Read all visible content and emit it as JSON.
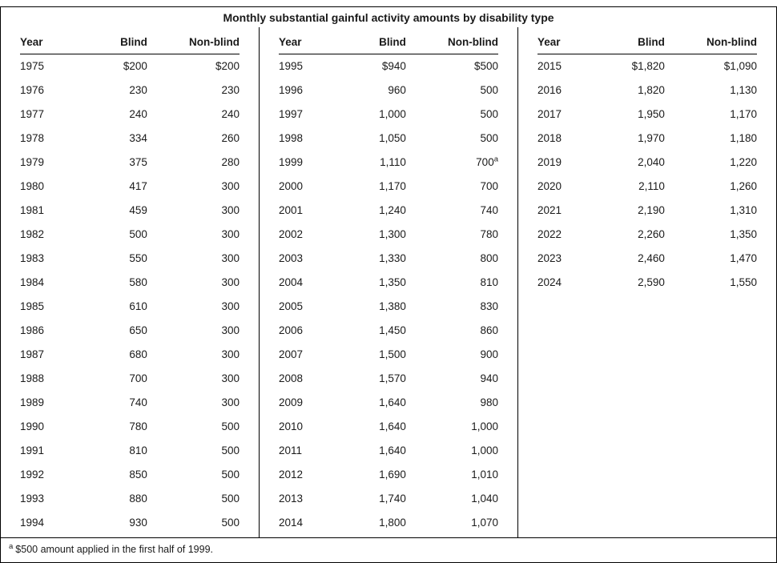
{
  "title": "Monthly substantial gainful activity amounts by disability type",
  "columns": [
    "Year",
    "Blind",
    "Non-blind"
  ],
  "tables": [
    {
      "name": "years-1975-1994",
      "rows": [
        [
          "1975",
          "$200",
          "$200"
        ],
        [
          "1976",
          "230",
          "230"
        ],
        [
          "1977",
          "240",
          "240"
        ],
        [
          "1978",
          "334",
          "260"
        ],
        [
          "1979",
          "375",
          "280"
        ],
        [
          "1980",
          "417",
          "300"
        ],
        [
          "1981",
          "459",
          "300"
        ],
        [
          "1982",
          "500",
          "300"
        ],
        [
          "1983",
          "550",
          "300"
        ],
        [
          "1984",
          "580",
          "300"
        ],
        [
          "1985",
          "610",
          "300"
        ],
        [
          "1986",
          "650",
          "300"
        ],
        [
          "1987",
          "680",
          "300"
        ],
        [
          "1988",
          "700",
          "300"
        ],
        [
          "1989",
          "740",
          "300"
        ],
        [
          "1990",
          "780",
          "500"
        ],
        [
          "1991",
          "810",
          "500"
        ],
        [
          "1992",
          "850",
          "500"
        ],
        [
          "1993",
          "880",
          "500"
        ],
        [
          "1994",
          "930",
          "500"
        ]
      ]
    },
    {
      "name": "years-1995-2014",
      "rows": [
        [
          "1995",
          "$940",
          "$500"
        ],
        [
          "1996",
          "960",
          "500"
        ],
        [
          "1997",
          "1,000",
          "500"
        ],
        [
          "1998",
          "1,050",
          "500"
        ],
        [
          "1999",
          "1,110",
          "700^a"
        ],
        [
          "2000",
          "1,170",
          "700"
        ],
        [
          "2001",
          "1,240",
          "740"
        ],
        [
          "2002",
          "1,300",
          "780"
        ],
        [
          "2003",
          "1,330",
          "800"
        ],
        [
          "2004",
          "1,350",
          "810"
        ],
        [
          "2005",
          "1,380",
          "830"
        ],
        [
          "2006",
          "1,450",
          "860"
        ],
        [
          "2007",
          "1,500",
          "900"
        ],
        [
          "2008",
          "1,570",
          "940"
        ],
        [
          "2009",
          "1,640",
          "980"
        ],
        [
          "2010",
          "1,640",
          "1,000"
        ],
        [
          "2011",
          "1,640",
          "1,000"
        ],
        [
          "2012",
          "1,690",
          "1,010"
        ],
        [
          "2013",
          "1,740",
          "1,040"
        ],
        [
          "2014",
          "1,800",
          "1,070"
        ]
      ]
    },
    {
      "name": "years-2015-2024",
      "rows": [
        [
          "2015",
          "$1,820",
          "$1,090"
        ],
        [
          "2016",
          "1,820",
          "1,130"
        ],
        [
          "2017",
          "1,950",
          "1,170"
        ],
        [
          "2018",
          "1,970",
          "1,180"
        ],
        [
          "2019",
          "2,040",
          "1,220"
        ],
        [
          "2020",
          "2,110",
          "1,260"
        ],
        [
          "2021",
          "2,190",
          "1,310"
        ],
        [
          "2022",
          "2,260",
          "1,350"
        ],
        [
          "2023",
          "2,460",
          "1,470"
        ],
        [
          "2024",
          "2,590",
          "1,550"
        ]
      ]
    }
  ],
  "footnote": {
    "marker": "a",
    "text": "$500 amount applied in the first half of 1999."
  },
  "chart_data": {
    "type": "table",
    "title": "Monthly substantial gainful activity amounts by disability type",
    "columns": [
      "Year",
      "Blind",
      "Non-blind"
    ],
    "rows": [
      [
        1975,
        200,
        200
      ],
      [
        1976,
        230,
        230
      ],
      [
        1977,
        240,
        240
      ],
      [
        1978,
        334,
        260
      ],
      [
        1979,
        375,
        280
      ],
      [
        1980,
        417,
        300
      ],
      [
        1981,
        459,
        300
      ],
      [
        1982,
        500,
        300
      ],
      [
        1983,
        550,
        300
      ],
      [
        1984,
        580,
        300
      ],
      [
        1985,
        610,
        300
      ],
      [
        1986,
        650,
        300
      ],
      [
        1987,
        680,
        300
      ],
      [
        1988,
        700,
        300
      ],
      [
        1989,
        740,
        300
      ],
      [
        1990,
        780,
        500
      ],
      [
        1991,
        810,
        500
      ],
      [
        1992,
        850,
        500
      ],
      [
        1993,
        880,
        500
      ],
      [
        1994,
        930,
        500
      ],
      [
        1995,
        940,
        500
      ],
      [
        1996,
        960,
        500
      ],
      [
        1997,
        1000,
        500
      ],
      [
        1998,
        1050,
        500
      ],
      [
        1999,
        1110,
        700
      ],
      [
        2000,
        1170,
        700
      ],
      [
        2001,
        1240,
        740
      ],
      [
        2002,
        1300,
        780
      ],
      [
        2003,
        1330,
        800
      ],
      [
        2004,
        1350,
        810
      ],
      [
        2005,
        1380,
        830
      ],
      [
        2006,
        1450,
        860
      ],
      [
        2007,
        1500,
        900
      ],
      [
        2008,
        1570,
        940
      ],
      [
        2009,
        1640,
        980
      ],
      [
        2010,
        1640,
        1000
      ],
      [
        2011,
        1640,
        1000
      ],
      [
        2012,
        1690,
        1010
      ],
      [
        2013,
        1740,
        1040
      ],
      [
        2014,
        1800,
        1070
      ],
      [
        2015,
        1820,
        1090
      ],
      [
        2016,
        1820,
        1130
      ],
      [
        2017,
        1950,
        1170
      ],
      [
        2018,
        1970,
        1180
      ],
      [
        2019,
        2040,
        1220
      ],
      [
        2020,
        2110,
        1260
      ],
      [
        2021,
        2190,
        1310
      ],
      [
        2022,
        2260,
        1350
      ],
      [
        2023,
        2460,
        1470
      ],
      [
        2024,
        2590,
        1550
      ]
    ],
    "footnotes": [
      {
        "marker": "a",
        "applies_to": "1999 Non-blind amount",
        "text": "$500 amount applied in the first half of 1999."
      }
    ],
    "units": "US dollars per month"
  }
}
